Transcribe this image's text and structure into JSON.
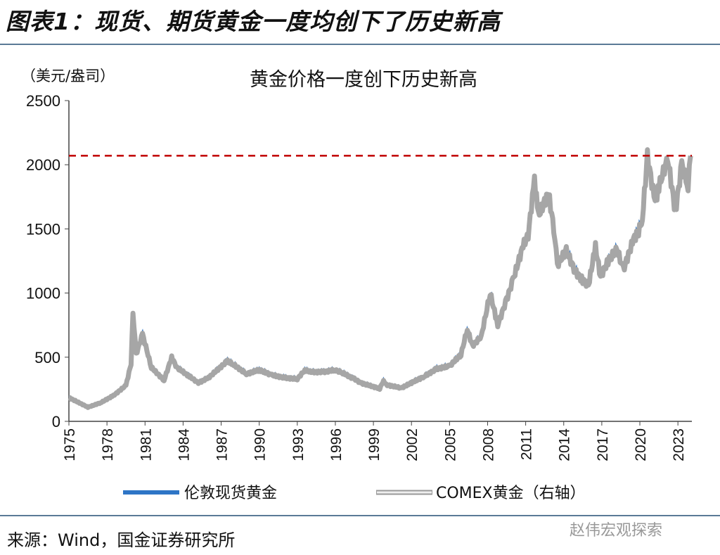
{
  "header": {
    "title": "图表1：现货、期货黄金一度均创下了历史新高"
  },
  "source": "来源：Wind，国金证券研究所",
  "watermark": "赵伟宏观探索",
  "chart_data": {
    "type": "line",
    "title": "黄金价格一度创下历史新高",
    "ylabel": "（美元/盎司）",
    "ylim": [
      0,
      2500
    ],
    "yticks": [
      "0",
      "500",
      "1000",
      "1500",
      "2000",
      "2500"
    ],
    "xlim": [
      1975,
      2024.1
    ],
    "xticks": [
      "1975",
      "1978",
      "1981",
      "1984",
      "1987",
      "1990",
      "1993",
      "1996",
      "1999",
      "2002",
      "2005",
      "2008",
      "2011",
      "2014",
      "2017",
      "2020",
      "2023"
    ],
    "grid": false,
    "legend_position": "bottom",
    "reference_line": {
      "value": 2070,
      "color": "#c00000",
      "style": "dashed"
    },
    "x": [
      1975.0,
      1976.5,
      1977.5,
      1978.5,
      1979.5,
      1979.9,
      1980.05,
      1980.3,
      1980.8,
      1981.5,
      1982.5,
      1983.1,
      1983.5,
      1984.5,
      1985.2,
      1986.0,
      1987.5,
      1988.0,
      1989.0,
      1990.0,
      1991.0,
      1992.0,
      1993.0,
      1993.6,
      1994.0,
      1995.0,
      1996.0,
      1996.5,
      1997.5,
      1998.0,
      1999.5,
      1999.8,
      2000.0,
      2001.2,
      2002.0,
      2003.0,
      2004.0,
      2005.0,
      2005.9,
      2006.4,
      2006.8,
      2007.5,
      2008.2,
      2008.8,
      2009.5,
      2010.0,
      2010.8,
      2011.2,
      2011.7,
      2012.0,
      2012.8,
      2013.3,
      2013.5,
      2014.2,
      2014.9,
      2015.5,
      2015.95,
      2016.5,
      2016.9,
      2017.5,
      2018.2,
      2018.7,
      2019.5,
      2019.9,
      2020.2,
      2020.6,
      2021.2,
      2021.5,
      2022.2,
      2022.8,
      2023.3,
      2023.8,
      2024.0
    ],
    "series": [
      {
        "name": "伦敦现货黄金",
        "color": "#2e75c6",
        "values": [
          185,
          110,
          145,
          200,
          280,
          450,
          850,
          520,
          680,
          420,
          320,
          500,
          420,
          350,
          300,
          340,
          470,
          440,
          370,
          400,
          360,
          340,
          330,
          400,
          385,
          385,
          400,
          380,
          330,
          300,
          255,
          320,
          285,
          260,
          300,
          350,
          410,
          430,
          520,
          720,
          590,
          660,
          1000,
          750,
          950,
          1100,
          1370,
          1450,
          1890,
          1600,
          1780,
          1450,
          1220,
          1330,
          1170,
          1100,
          1060,
          1360,
          1130,
          1250,
          1340,
          1180,
          1420,
          1480,
          1580,
          2070,
          1700,
          1830,
          2050,
          1630,
          2000,
          1830,
          2070
        ]
      },
      {
        "name": "COMEX黄金（右轴）",
        "color": "#a6a6a6",
        "values": [
          185,
          110,
          145,
          200,
          280,
          450,
          850,
          520,
          680,
          420,
          320,
          500,
          420,
          350,
          300,
          340,
          470,
          440,
          370,
          400,
          360,
          340,
          330,
          400,
          385,
          385,
          400,
          380,
          330,
          300,
          255,
          320,
          285,
          260,
          300,
          350,
          410,
          430,
          520,
          720,
          590,
          660,
          1000,
          750,
          950,
          1100,
          1370,
          1450,
          1890,
          1600,
          1780,
          1450,
          1220,
          1330,
          1170,
          1100,
          1060,
          1360,
          1130,
          1250,
          1340,
          1180,
          1420,
          1480,
          1580,
          2070,
          1700,
          1830,
          2050,
          1630,
          2000,
          1830,
          2070
        ]
      }
    ]
  }
}
